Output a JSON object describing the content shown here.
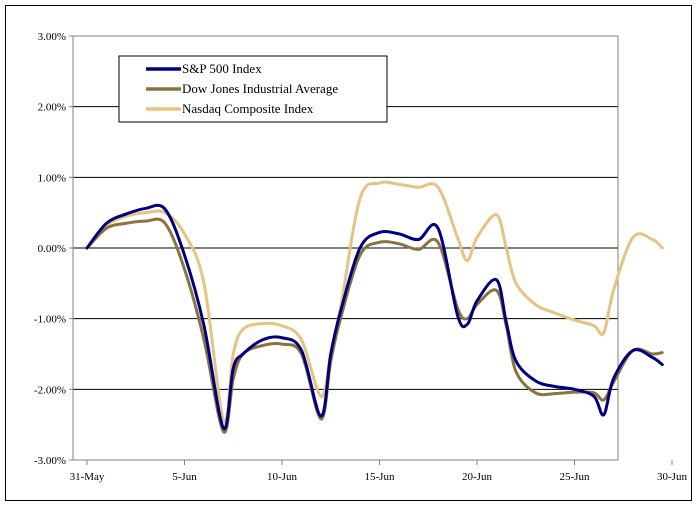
{
  "chart_data": {
    "type": "line",
    "title": "",
    "xlabel": "",
    "ylabel": "",
    "x_tick_labels": [
      "31-May",
      "5-Jun",
      "10-Jun",
      "15-Jun",
      "20-Jun",
      "25-Jun",
      "30-Jun"
    ],
    "y_tick_labels": [
      "3.00%",
      "2.00%",
      "1.00%",
      "0.00%",
      "-1.00%",
      "-2.00%",
      "-3.00%"
    ],
    "ylim": [
      -3.0,
      3.0
    ],
    "xlim": [
      0,
      30
    ],
    "grid": "horizontal",
    "legend_position": "top-left",
    "x": [
      0,
      1,
      2,
      3,
      4,
      5,
      6,
      7,
      7.5,
      8,
      9,
      10,
      11,
      12,
      12.5,
      13,
      14,
      15,
      16,
      17,
      18,
      19,
      19.5,
      20,
      21,
      21.5,
      22,
      23,
      24,
      25,
      26,
      26.5,
      27,
      28,
      29,
      29.5
    ],
    "series": [
      {
        "name": "S&P 500 Index",
        "color": "#00007f",
        "values": [
          0.0,
          0.35,
          0.48,
          0.56,
          0.55,
          -0.1,
          -1.1,
          -2.55,
          -1.7,
          -1.5,
          -1.3,
          -1.27,
          -1.45,
          -2.38,
          -1.5,
          -0.9,
          0.0,
          0.22,
          0.2,
          0.12,
          0.28,
          -0.95,
          -1.08,
          -0.75,
          -0.45,
          -1.05,
          -1.6,
          -1.88,
          -1.96,
          -2.0,
          -2.1,
          -2.36,
          -1.85,
          -1.45,
          -1.55,
          -1.65
        ]
      },
      {
        "name": "Dow Jones Industrial Average",
        "color": "#8b7340",
        "values": [
          0.0,
          0.28,
          0.35,
          0.38,
          0.35,
          -0.3,
          -1.3,
          -2.6,
          -1.85,
          -1.5,
          -1.38,
          -1.36,
          -1.5,
          -2.42,
          -1.6,
          -1.0,
          -0.1,
          0.08,
          0.06,
          -0.02,
          0.08,
          -0.85,
          -1.0,
          -0.8,
          -0.6,
          -1.1,
          -1.75,
          -2.05,
          -2.06,
          -2.04,
          -2.05,
          -2.15,
          -1.9,
          -1.45,
          -1.5,
          -1.48
        ]
      },
      {
        "name": "Nasdaq Composite Index",
        "color": "#e6c381",
        "values": [
          0.0,
          0.32,
          0.45,
          0.5,
          0.5,
          0.2,
          -0.5,
          -2.44,
          -1.5,
          -1.15,
          -1.07,
          -1.1,
          -1.3,
          -2.1,
          -1.5,
          -0.85,
          0.7,
          0.92,
          0.9,
          0.86,
          0.86,
          0.15,
          -0.18,
          0.15,
          0.47,
          0.0,
          -0.5,
          -0.8,
          -0.92,
          -1.02,
          -1.1,
          -1.2,
          -0.6,
          0.15,
          0.12,
          0.0
        ]
      }
    ]
  }
}
